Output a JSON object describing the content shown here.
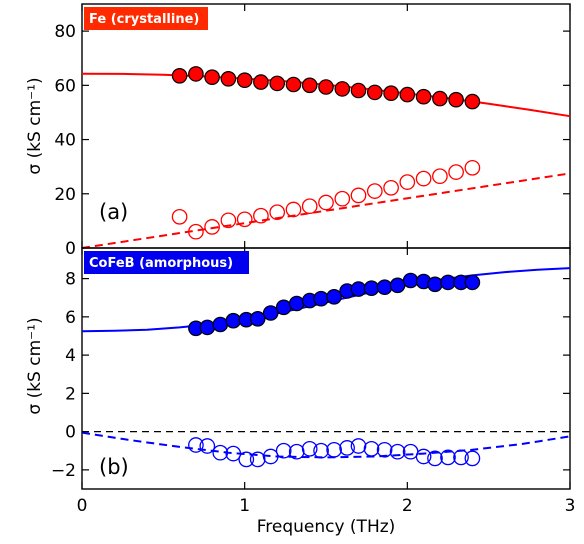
{
  "chart_data": [
    {
      "type": "scatter",
      "panel": "(a)",
      "badge": "Fe (crystalline)",
      "badge_color": "#ff2a00",
      "color": "#ff0000",
      "ylabel": "σ (kS cm⁻¹)",
      "xlim": [
        0,
        3
      ],
      "ylim": [
        0,
        90
      ],
      "yticks": [
        0,
        20,
        40,
        60,
        80
      ],
      "yticks_labels": [
        "0",
        "20",
        "40",
        "60",
        "80"
      ],
      "series": [
        {
          "kind": "points-filled",
          "x": [
            0.6,
            0.7,
            0.8,
            0.9,
            1.0,
            1.1,
            1.2,
            1.3,
            1.4,
            1.5,
            1.6,
            1.7,
            1.8,
            1.9,
            2.0,
            2.1,
            2.2,
            2.3,
            2.4
          ],
          "values": [
            63.5,
            64.2,
            63.0,
            62.4,
            61.9,
            61.2,
            60.7,
            60.3,
            60.0,
            59.4,
            58.7,
            58.1,
            57.4,
            57.1,
            56.6,
            55.8,
            55.1,
            54.7,
            54.0
          ]
        },
        {
          "kind": "points-open",
          "x": [
            0.6,
            0.7,
            0.8,
            0.9,
            1.0,
            1.1,
            1.2,
            1.3,
            1.4,
            1.5,
            1.6,
            1.7,
            1.8,
            1.9,
            2.0,
            2.1,
            2.2,
            2.3,
            2.4
          ],
          "values": [
            11.5,
            6.0,
            7.8,
            10.2,
            10.6,
            11.9,
            13.2,
            14.2,
            15.4,
            16.8,
            18.2,
            19.4,
            21.0,
            22.2,
            24.3,
            25.6,
            26.5,
            28.0,
            29.6
          ]
        },
        {
          "kind": "line-solid",
          "x": [
            0,
            0.25,
            0.5,
            0.75,
            1.0,
            1.25,
            1.5,
            1.75,
            2.0,
            2.25,
            2.5,
            2.75,
            3.0
          ],
          "values": [
            64.3,
            64.2,
            63.9,
            63.3,
            62.5,
            61.5,
            60.2,
            58.7,
            57.0,
            55.2,
            53.2,
            51.0,
            48.6
          ]
        },
        {
          "kind": "line-dashed",
          "x": [
            0,
            3
          ],
          "values": [
            0,
            27.5
          ]
        }
      ]
    },
    {
      "type": "scatter",
      "panel": "(b)",
      "badge": "CoFeB (amorphous)",
      "badge_color": "#0000ee",
      "color": "#0000ff",
      "ylabel": "σ (kS cm⁻¹)",
      "xlabel": "Frequency (THz)",
      "xlim": [
        0,
        3
      ],
      "ylim": [
        -3,
        9.6
      ],
      "yticks": [
        -2,
        0,
        2,
        4,
        6,
        8
      ],
      "yticks_labels": [
        "−2",
        "0",
        "2",
        "4",
        "6",
        "8"
      ],
      "xticks": [
        0,
        1,
        2,
        3
      ],
      "xticks_labels": [
        "0",
        "1",
        "2",
        "3"
      ],
      "series": [
        {
          "kind": "points-filled",
          "x": [
            0.7,
            0.77,
            0.85,
            0.93,
            1.01,
            1.08,
            1.16,
            1.24,
            1.32,
            1.4,
            1.47,
            1.55,
            1.63,
            1.7,
            1.78,
            1.86,
            1.94,
            2.02,
            2.1,
            2.17,
            2.25,
            2.33,
            2.4
          ],
          "values": [
            5.4,
            5.45,
            5.6,
            5.8,
            5.85,
            5.9,
            6.2,
            6.5,
            6.7,
            6.85,
            6.95,
            7.05,
            7.35,
            7.45,
            7.5,
            7.55,
            7.65,
            7.9,
            7.85,
            7.7,
            7.8,
            7.8,
            7.8
          ]
        },
        {
          "kind": "points-open",
          "x": [
            0.7,
            0.77,
            0.85,
            0.93,
            1.01,
            1.08,
            1.16,
            1.24,
            1.32,
            1.4,
            1.47,
            1.55,
            1.63,
            1.7,
            1.78,
            1.86,
            1.94,
            2.02,
            2.1,
            2.17,
            2.25,
            2.33,
            2.4
          ],
          "values": [
            -0.7,
            -0.75,
            -1.1,
            -1.15,
            -1.45,
            -1.45,
            -1.3,
            -1.0,
            -1.05,
            -0.9,
            -1.0,
            -0.95,
            -0.85,
            -0.75,
            -0.9,
            -0.95,
            -1.05,
            -1.05,
            -1.3,
            -1.4,
            -1.35,
            -1.35,
            -1.4
          ]
        },
        {
          "kind": "line-solid",
          "x": [
            0,
            0.2,
            0.4,
            0.6,
            0.8,
            1.0,
            1.2,
            1.4,
            1.6,
            1.8,
            2.0,
            2.2,
            2.4,
            2.6,
            2.8,
            3.0
          ],
          "values": [
            5.25,
            5.27,
            5.33,
            5.45,
            5.62,
            5.86,
            6.18,
            6.55,
            6.95,
            7.33,
            7.67,
            7.95,
            8.17,
            8.34,
            8.46,
            8.55
          ]
        },
        {
          "kind": "line-dashed",
          "x": [
            0,
            0.3,
            0.6,
            0.9,
            1.2,
            1.5,
            1.8,
            2.1,
            2.4,
            2.7,
            3.0
          ],
          "values": [
            -0.05,
            -0.45,
            -0.8,
            -1.1,
            -1.3,
            -1.35,
            -1.3,
            -1.15,
            -0.95,
            -0.65,
            -0.25
          ]
        },
        {
          "kind": "zero-line",
          "x": [
            0,
            3
          ],
          "values": [
            0,
            0
          ],
          "color": "#000000"
        }
      ]
    }
  ]
}
